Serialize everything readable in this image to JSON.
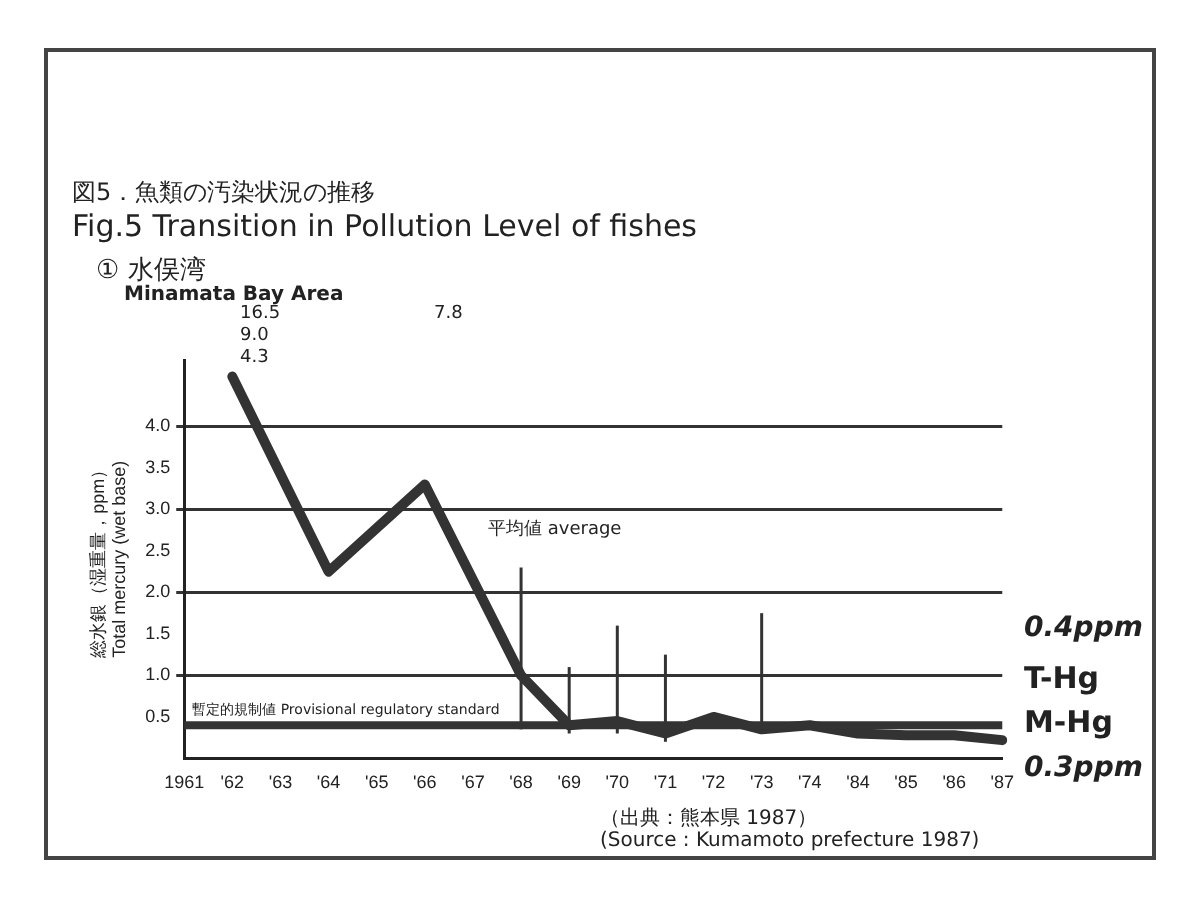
{
  "chart_data": {
    "type": "line",
    "title": "図5．魚類の汚染状況の推移",
    "subtitle": "Fig.5 Transition in Pollution Level of fishes",
    "ylabel": "総水銀（湿重量，ppm）\nTotal mercury (wet base)",
    "categories": [
      "1961",
      "'62",
      "'63",
      "'64",
      "'65",
      "'66",
      "'67",
      "'68",
      "'69",
      "'70",
      "'71",
      "'72",
      "'73",
      "'74",
      "'84",
      "'85",
      "'86",
      "'87"
    ],
    "series": [
      {
        "color": "#333333",
        "values": [
          null,
          4.6,
          null,
          2.25,
          null,
          3.3,
          null,
          1.0,
          0.4,
          0.45,
          0.3,
          0.5,
          0.35,
          0.4,
          0.3,
          0.28,
          0.28,
          0.22
        ],
        "errors": [
          null,
          null,
          null,
          null,
          null,
          null,
          null,
          [
            0.35,
            2.3
          ],
          [
            0.3,
            1.1
          ],
          [
            0.3,
            1.6
          ],
          [
            0.2,
            1.25
          ],
          null,
          [
            0.35,
            1.75
          ],
          null,
          null,
          null,
          null,
          null
        ]
      }
    ],
    "ylim": [
      0,
      4.8
    ],
    "yticks": [
      {
        "value": 0.5,
        "label": "0.5"
      },
      {
        "value": 1,
        "label": "1.0"
      },
      {
        "value": 1.5,
        "label": "1.5"
      },
      {
        "value": 2,
        "label": "2.0"
      },
      {
        "value": 2.5,
        "label": "2.5"
      },
      {
        "value": 3,
        "label": "3.0"
      },
      {
        "value": 3.5,
        "label": "3.5"
      },
      {
        "value": 4,
        "label": "4.0"
      }
    ],
    "grid": "y",
    "marker": "none",
    "line_style": "solid",
    "legend": false,
    "ref_lines": [
      {
        "axis": "y",
        "value": 0.4,
        "label": "暫定的規制値 Provisional regulatory standard",
        "color": "#333333"
      }
    ],
    "annotations": [
      "① 水俣湾",
      "Minamata Bay Area",
      "（出典：熊本県 1987）",
      "(Source : Kumamoto prefecture 1987)",
      "0.4ppm",
      "T-Hg",
      "M-Hg",
      "0.3ppm",
      "16.5",
      "9.0",
      "4.3",
      "7.8",
      "平均値 average"
    ]
  }
}
